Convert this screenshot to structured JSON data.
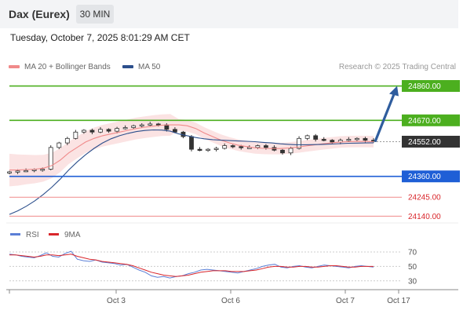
{
  "header": {
    "title": "Dax (Eurex)",
    "timeframe": "30 MIN",
    "datetime": "Tuesday, October 7, 2025 8:01:29 AM CET",
    "credit": "Research © 2025 Trading Central"
  },
  "legend": {
    "ma20_label": "MA 20 + Bollinger Bands",
    "ma50_label": "MA 50",
    "rsi_label": "RSI",
    "ma9_label": "9MA"
  },
  "colors": {
    "ma20": "#f08a8a",
    "ma50": "#2c4f8c",
    "bollinger_fill": "#fbe3e3",
    "resistance": "#4caf1f",
    "current": "#333333",
    "pivot": "#1f5fd6",
    "support": "#f08a8a",
    "arrow": "#2f5d9e",
    "rsi": "#5b7fd6",
    "rsi_ma": "#d9262b"
  },
  "levels": [
    {
      "value": 24860,
      "label": "24860.00",
      "kind": "resistance"
    },
    {
      "value": 24670,
      "label": "24670.00",
      "kind": "resistance"
    },
    {
      "value": 24552,
      "label": "24552.00",
      "kind": "current"
    },
    {
      "value": 24360,
      "label": "24360.00",
      "kind": "pivot"
    },
    {
      "value": 24245,
      "label": "24245.00",
      "kind": "support"
    },
    {
      "value": 24140,
      "label": "24140.00",
      "kind": "support"
    }
  ],
  "chart_data": [
    {
      "type": "candlestick",
      "ylim": [
        24120,
        24910
      ],
      "x_ticks": [
        "Oct 3",
        "Oct 6",
        "Oct 7",
        "Oct 17"
      ],
      "series": [
        {
          "name": "MA 20 + Bollinger Bands",
          "values": [
            24395,
            24395,
            24398,
            24400,
            24405,
            24420,
            24450,
            24490,
            24520,
            24550,
            24570,
            24585,
            24595,
            24605,
            24615,
            24625,
            24632,
            24638,
            24643,
            24645,
            24645,
            24640,
            24625,
            24600,
            24580,
            24560,
            24545,
            24533,
            24525,
            24518,
            24515,
            24514,
            24514,
            24517,
            24522,
            24528,
            24534,
            24540,
            24545,
            24550,
            24552,
            24553,
            24553,
            24552
          ]
        },
        {
          "name": "MA 50",
          "values": [
            24150,
            24170,
            24195,
            24225,
            24260,
            24300,
            24345,
            24395,
            24440,
            24480,
            24515,
            24545,
            24568,
            24585,
            24598,
            24608,
            24614,
            24617,
            24616,
            24610,
            24595,
            24585,
            24575,
            24568,
            24563,
            24560,
            24558,
            24556,
            24554,
            24552,
            24548,
            24545,
            24540,
            24537,
            24535,
            24535,
            24536,
            24537,
            24539,
            24541,
            24543,
            24544,
            24545,
            24546
          ]
        }
      ],
      "close": [
        24385,
        24390,
        24392,
        24398,
        24400,
        24520,
        24545,
        24570,
        24605,
        24615,
        24605,
        24620,
        24610,
        24625,
        24630,
        24640,
        24645,
        24650,
        24645,
        24620,
        24605,
        24580,
        24510,
        24505,
        24510,
        24515,
        24530,
        24525,
        24520,
        24520,
        24530,
        24520,
        24505,
        24490,
        24515,
        24570,
        24585,
        24565,
        24560,
        24550,
        24560,
        24565,
        24570,
        24560,
        24552
      ],
      "forecast_target": 24860
    },
    {
      "type": "line",
      "title": "RSI",
      "ylim": [
        20,
        82
      ],
      "y_ticks": [
        70,
        50,
        30
      ],
      "series": [
        {
          "name": "RSI",
          "values": [
            67,
            66,
            64,
            63,
            62,
            65,
            69,
            64,
            63,
            68,
            71,
            60,
            58,
            57,
            59,
            56,
            55,
            54,
            52,
            53,
            49,
            45,
            42,
            37,
            35,
            36,
            34,
            36,
            37,
            40,
            42,
            45,
            46,
            45,
            44,
            43,
            42,
            41,
            43,
            45,
            47,
            50,
            52,
            53,
            49,
            48,
            50,
            51,
            49,
            48,
            50,
            52,
            51,
            50,
            49,
            48,
            50,
            51,
            50,
            49
          ]
        },
        {
          "name": "9MA",
          "values": [
            66,
            66,
            65,
            64,
            63,
            64,
            66,
            66,
            65,
            66,
            67,
            64,
            62,
            60,
            59,
            57,
            56,
            55,
            54,
            53,
            51,
            48,
            45,
            42,
            40,
            38,
            37,
            36,
            37,
            38,
            40,
            42,
            43,
            44,
            44,
            44,
            43,
            43,
            43,
            44,
            45,
            47,
            49,
            50,
            50,
            49,
            49,
            50,
            50,
            49,
            49,
            50,
            51,
            51,
            50,
            49,
            49,
            50,
            50,
            50
          ]
        }
      ]
    }
  ]
}
